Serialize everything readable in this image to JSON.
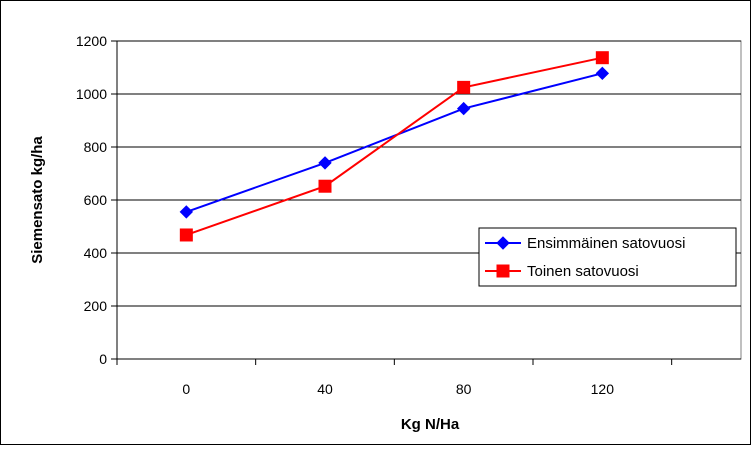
{
  "chart_data": {
    "type": "line",
    "title": "",
    "xlabel": "Kg N/Ha",
    "ylabel": "Siemensato kg/ha",
    "categories": [
      "0",
      "40",
      "80",
      "120"
    ],
    "ylim": [
      0,
      1200
    ],
    "yticks": [
      0,
      200,
      400,
      600,
      800,
      1000,
      1200
    ],
    "grid": true,
    "legend_position": "right",
    "series": [
      {
        "name": "Ensimmäinen satovuosi",
        "values": [
          555,
          740,
          945,
          1078
        ],
        "color": "#0000ff",
        "marker": "diamond"
      },
      {
        "name": "Toinen satovuosi",
        "values": [
          468,
          652,
          1025,
          1137
        ],
        "color": "#ff0000",
        "marker": "square"
      }
    ]
  }
}
